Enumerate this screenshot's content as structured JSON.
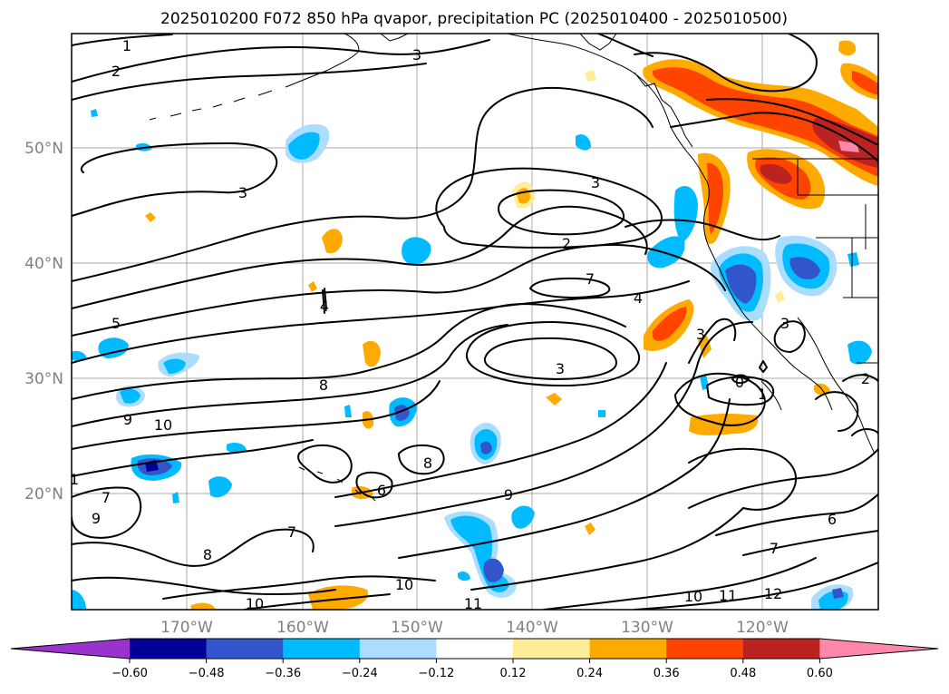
{
  "title": "2025010200 F072 850 hPa qvapor, precipitation PC (2025010400 - 2025010500)",
  "lon_ticks": [
    "170°W",
    "160°W",
    "150°W",
    "140°W",
    "130°W",
    "120°W"
  ],
  "lat_ticks": [
    "50°N",
    "40°N",
    "30°N",
    "20°N"
  ],
  "colorbar": {
    "colors": [
      "#9933cc",
      "#000099",
      "#3355cc",
      "#00bbff",
      "#aaddff",
      "#ffffff",
      "#ffee99",
      "#ffaa00",
      "#ff4400",
      "#bb2222",
      "#ff88aa"
    ],
    "ticks": [
      "−0.60",
      "−0.48",
      "−0.36",
      "−0.24",
      "−0.12",
      "0.12",
      "0.24",
      "0.36",
      "0.48",
      "0.60"
    ]
  },
  "contour_labels": [
    "1",
    "2",
    "3",
    "3",
    "3",
    "2",
    "7",
    "4",
    "5",
    "4",
    "3",
    "3",
    "8",
    "9",
    "10",
    "1",
    "7",
    "9",
    "7",
    "8",
    "6",
    "8",
    "9",
    "10",
    "10",
    "11",
    "10",
    "11",
    "12",
    "6",
    "7",
    "1",
    "0",
    "3",
    "2"
  ]
}
